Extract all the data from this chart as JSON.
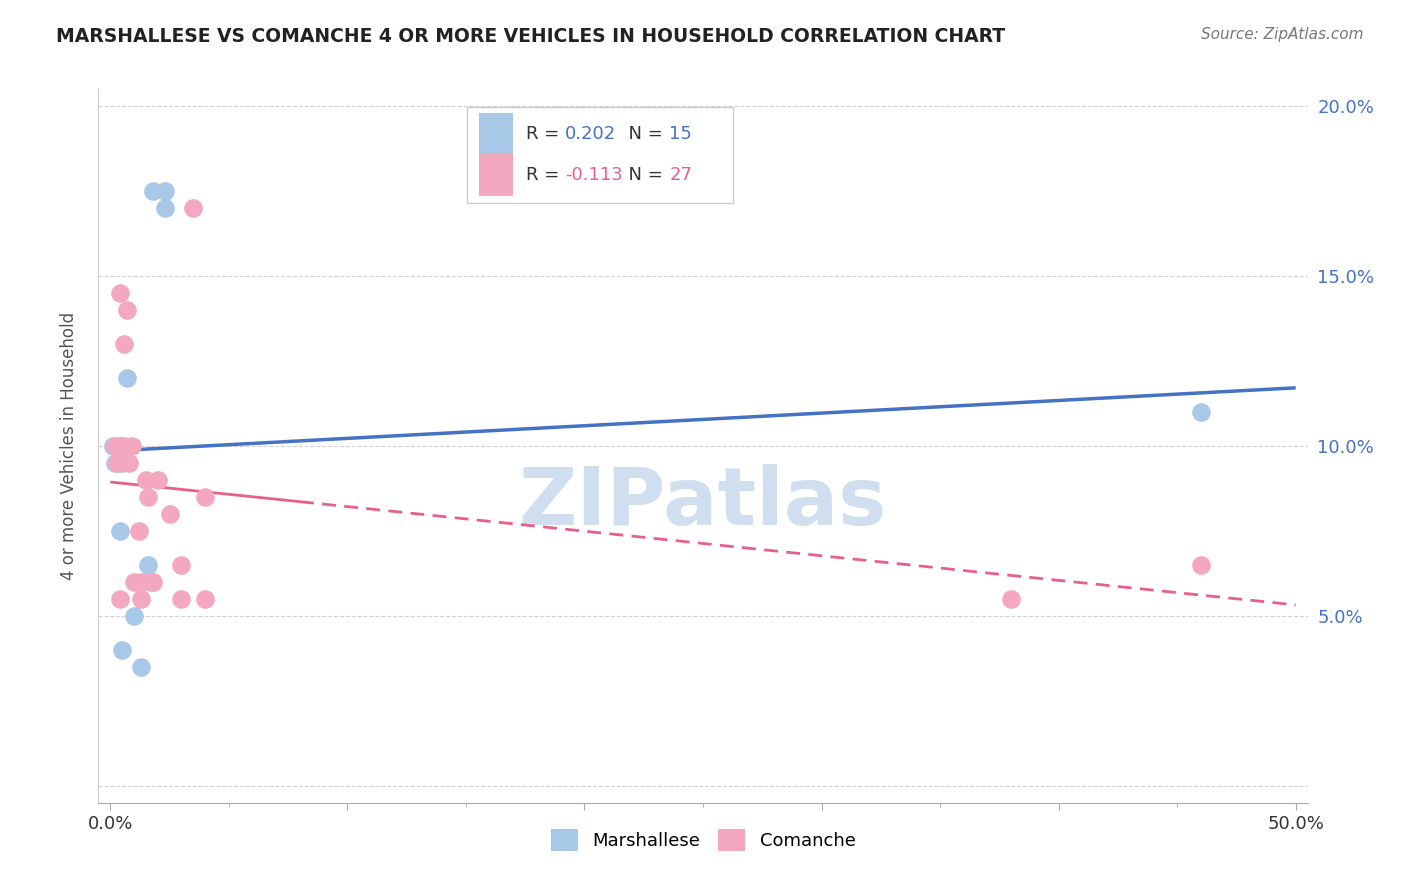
{
  "title": "MARSHALLESE VS COMANCHE 4 OR MORE VEHICLES IN HOUSEHOLD CORRELATION CHART",
  "source": "Source: ZipAtlas.com",
  "ylabel": "4 or more Vehicles in Household",
  "xlim": [
    -0.005,
    0.505
  ],
  "ylim": [
    -0.005,
    0.205
  ],
  "xticks": [
    0.0,
    0.1,
    0.2,
    0.3,
    0.4,
    0.5
  ],
  "xtick_labels": [
    "0.0%",
    "",
    "",
    "",
    "",
    "50.0%"
  ],
  "yticks": [
    0.0,
    0.05,
    0.1,
    0.15,
    0.2
  ],
  "ytick_labels": [
    "",
    "5.0%",
    "10.0%",
    "15.0%",
    "20.0%"
  ],
  "marshallese_x": [
    0.001,
    0.002,
    0.003,
    0.004,
    0.004,
    0.005,
    0.005,
    0.007,
    0.01,
    0.013,
    0.016,
    0.018,
    0.023,
    0.023,
    0.46
  ],
  "marshallese_y": [
    0.1,
    0.095,
    0.095,
    0.1,
    0.075,
    0.095,
    0.04,
    0.12,
    0.05,
    0.035,
    0.065,
    0.175,
    0.175,
    0.17,
    0.11
  ],
  "comanche_x": [
    0.002,
    0.003,
    0.004,
    0.004,
    0.005,
    0.006,
    0.006,
    0.007,
    0.008,
    0.009,
    0.01,
    0.012,
    0.013,
    0.013,
    0.015,
    0.016,
    0.017,
    0.018,
    0.02,
    0.025,
    0.03,
    0.03,
    0.035,
    0.04,
    0.04,
    0.38,
    0.46
  ],
  "comanche_y": [
    0.1,
    0.095,
    0.145,
    0.055,
    0.1,
    0.13,
    0.1,
    0.14,
    0.095,
    0.1,
    0.06,
    0.075,
    0.06,
    0.055,
    0.09,
    0.085,
    0.06,
    0.06,
    0.09,
    0.08,
    0.065,
    0.055,
    0.17,
    0.085,
    0.055,
    0.055,
    0.065
  ],
  "blue_line_color": "#4472c4",
  "pink_line_color": "#e8608a",
  "marker_blue": "#a8c8e8",
  "marker_pink": "#f4a8c0",
  "background_color": "#ffffff",
  "watermark": "ZIPatlas",
  "watermark_color": "#d0dff0",
  "legend_r1_val": "0.202",
  "legend_r1_n": "15",
  "legend_r2_val": "-0.113",
  "legend_r2_n": "27"
}
